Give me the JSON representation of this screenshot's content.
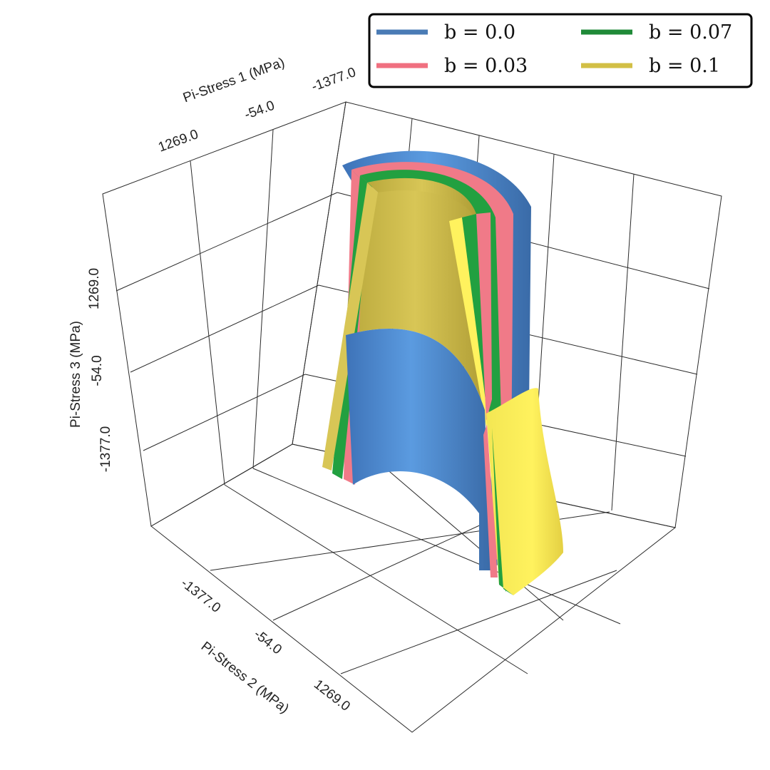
{
  "chart_data": {
    "type": "surface3d",
    "axes": {
      "x": {
        "label": "Pi-Stress 1 (MPa)",
        "ticks": [
          1269.0,
          -54.0,
          -1377.0
        ],
        "tick_labels": [
          "1269.0",
          "-54.0",
          "-1377.0"
        ]
      },
      "y": {
        "label": "Pi-Stress 2 (MPa)",
        "ticks": [
          -1377.0,
          -54.0,
          1269.0
        ],
        "tick_labels": [
          "-1377.0",
          "-54.0",
          "1269.0"
        ]
      },
      "z": {
        "label": "Pi-Stress 3 (MPa)",
        "ticks": [
          -1377.0,
          -54.0,
          1269.0
        ],
        "tick_labels": [
          "-1377.0",
          "-54.0",
          "1269.0"
        ]
      }
    },
    "grid": true,
    "legend": {
      "placement": "top-right",
      "columns": 2
    },
    "series": [
      {
        "name": "b = 0.0",
        "color": "#4a7bb5",
        "surface_color": "#5b97d4",
        "order": 0
      },
      {
        "name": "b = 0.03",
        "color": "#f07080",
        "surface_color": "#f07a88",
        "order": 1
      },
      {
        "name": "b = 0.07",
        "color": "#1f8a38",
        "surface_color": "#22a040",
        "order": 2
      },
      {
        "name": "b = 0.1",
        "color": "#d2bf45",
        "surface_color": "#f0e04a",
        "order": 3
      }
    ]
  }
}
